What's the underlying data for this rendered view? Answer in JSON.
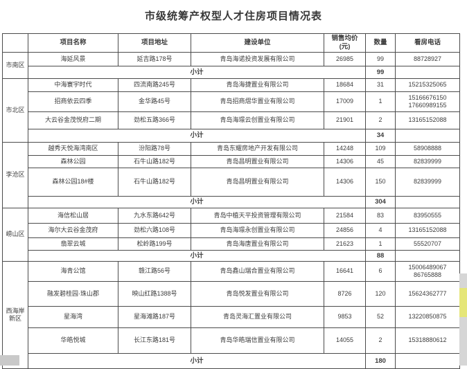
{
  "title": "市级统筹产权型人才住房项目情况表",
  "table": {
    "columns": [
      "项目名称",
      "项目地址",
      "建设单位",
      "销售均价\n(元)",
      "数量",
      "看房电话"
    ],
    "subtotal_label": "小计",
    "groups": [
      {
        "district": "市南区",
        "rows": [
          {
            "name": "海延风景",
            "address": "延吉路178号",
            "builder": "青岛海诺投资发展有限公司",
            "price": "26985",
            "qty": "99",
            "phones": [
              "88728927"
            ]
          }
        ],
        "subtotal": "99"
      },
      {
        "district": "市北区",
        "rows": [
          {
            "name": "中海寰宇时代",
            "address": "四流南路245号",
            "builder": "青岛海捷置业有限公司",
            "price": "18684",
            "qty": "31",
            "phones": [
              "15215325065"
            ]
          },
          {
            "name": "招商依云四季",
            "address": "金华路45号",
            "builder": "青岛招商熠华置业有限公司",
            "price": "17009",
            "qty": "1",
            "phones": [
              "15166676150",
              "17660989155"
            ]
          },
          {
            "name": "大云谷金茂悦府二期",
            "address": "劲松五路366号",
            "builder": "青岛海璟云创置业有限公司",
            "price": "21901",
            "qty": "2",
            "phones": [
              "13165152088"
            ]
          }
        ],
        "subtotal": "34"
      },
      {
        "district": "李沧区",
        "rows": [
          {
            "name": "越秀天悦海湾南区",
            "address": "汾阳路78号",
            "builder": "青岛东耀房地产开发有限公司",
            "price": "14248",
            "qty": "109",
            "phones": [
              "58908888"
            ]
          },
          {
            "name": "森林公园",
            "address": "石牛山路182号",
            "builder": "青岛昌明置业有限公司",
            "price": "14306",
            "qty": "45",
            "phones": [
              "82839999"
            ]
          },
          {
            "name": "森林公园18#楼",
            "address": "石牛山路182号",
            "builder": "青岛昌明置业有限公司",
            "price": "14306",
            "qty": "150",
            "phones": [
              "82839999"
            ]
          }
        ],
        "subtotal": "304"
      },
      {
        "district": "崂山区",
        "rows": [
          {
            "name": "海信松山居",
            "address": "九水东路642号",
            "builder": "青岛中植天平投资管理有限公司",
            "price": "21584",
            "qty": "83",
            "phones": [
              "83950555"
            ]
          },
          {
            "name": "海尔大云谷金茂府",
            "address": "劲松六路108号",
            "builder": "青岛海璟永创置业有限公司",
            "price": "24856",
            "qty": "4",
            "phones": [
              "13165152088"
            ]
          },
          {
            "name": "翡翠云城",
            "address": "松岭路199号",
            "builder": "青岛海唐置业有限公司",
            "price": "21623",
            "qty": "1",
            "phones": [
              "55520707"
            ]
          }
        ],
        "subtotal": "88"
      },
      {
        "district": "西海岸新区",
        "rows": [
          {
            "name": "海青公馆",
            "address": "赣江路56号",
            "builder": "青岛鑫山瑞合置业有限公司",
            "price": "16641",
            "qty": "6",
            "phones": [
              "15006489067",
              "86765888"
            ]
          },
          {
            "name": "融发碧桂园·珠山郡",
            "address": "映山红路1388号",
            "builder": "青岛悦发置业有限公司",
            "price": "8726",
            "qty": "120",
            "phones": [
              "15624362777"
            ]
          },
          {
            "name": "星海湾",
            "address": "星海滩路187号",
            "builder": "青岛灵海汇置业有限公司",
            "price": "9853",
            "qty": "52",
            "phones": [
              "13220850875"
            ]
          },
          {
            "name": "华皓悦城",
            "address": "长江东路181号",
            "builder": "青岛华皓瑞信置业有限公司",
            "price": "14055",
            "qty": "2",
            "phones": [
              "15318880612"
            ]
          }
        ],
        "subtotal": "180"
      }
    ]
  },
  "colors": {
    "border": "#4a4a4a",
    "text": "#3c3c3c",
    "right_strip_gray": "#d6d6d6",
    "right_strip_yellow": "#e5e678",
    "corner_gray": "#c9c9c9"
  }
}
